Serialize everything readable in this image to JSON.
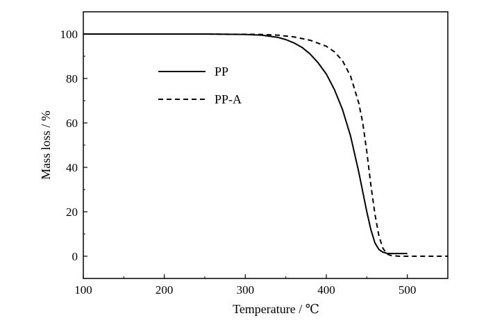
{
  "chart_data": {
    "type": "line",
    "xlabel": "Temperature / ℃",
    "ylabel": "Mass loss / %",
    "xlim": [
      100,
      550
    ],
    "ylim": [
      -10,
      110
    ],
    "x_ticks": [
      100,
      200,
      300,
      400,
      500
    ],
    "y_ticks": [
      0,
      20,
      40,
      60,
      80,
      100
    ],
    "grid": false,
    "legend_position": "upper-left",
    "series": [
      {
        "name": "PP",
        "style": "solid",
        "color": "#000000",
        "x": [
          100,
          150,
          200,
          250,
          280,
          300,
          320,
          340,
          350,
          360,
          370,
          380,
          390,
          400,
          410,
          420,
          430,
          440,
          445,
          450,
          455,
          460,
          465,
          470,
          475,
          480,
          490,
          500
        ],
        "y": [
          100,
          100,
          100,
          100,
          99.9,
          99.8,
          99.5,
          98.5,
          97.5,
          96,
          94,
          91,
          87,
          82,
          75,
          66,
          54,
          38,
          29,
          20,
          12,
          6,
          3,
          1.8,
          1.3,
          1.2,
          1.2,
          1.2
        ]
      },
      {
        "name": "PP-A",
        "style": "dashed",
        "color": "#000000",
        "x": [
          100,
          150,
          200,
          250,
          280,
          300,
          320,
          340,
          360,
          380,
          400,
          410,
          420,
          430,
          440,
          445,
          450,
          455,
          460,
          465,
          470,
          475,
          480,
          490,
          500,
          520,
          550
        ],
        "y": [
          100,
          100,
          100,
          100,
          99.9,
          99.9,
          99.8,
          99.5,
          98.7,
          97.2,
          94.5,
          92,
          88,
          81,
          69,
          60,
          47,
          32,
          19,
          9,
          3.5,
          1,
          0.3,
          0,
          0,
          0,
          0
        ]
      }
    ]
  }
}
